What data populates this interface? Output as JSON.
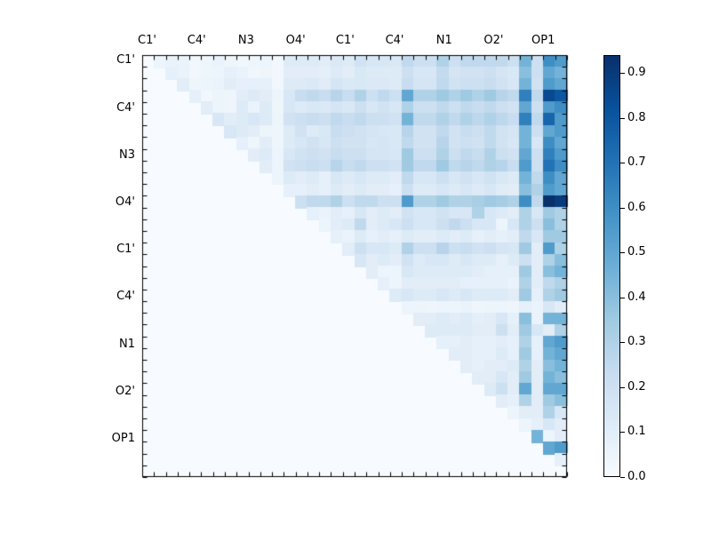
{
  "chart_data": {
    "type": "heatmap",
    "title": "",
    "colormap": "Blues",
    "vmin": 0.0,
    "vmax": 0.94,
    "n": 36,
    "mask": "lower-triangle-and-diagonal",
    "x_tick_labels": [
      "C1'",
      "C4'",
      "N3",
      "O4'",
      "C1'",
      "C4'",
      "N1",
      "O2'",
      "OP1"
    ],
    "y_tick_labels": [
      "C1'",
      "C4'",
      "N3",
      "O4'",
      "C1'",
      "C4'",
      "N1",
      "O2'",
      "OP1"
    ],
    "tick_label_every_n_cells": 4,
    "colorbar_tick_labels": [
      "0.0",
      "0.1",
      "0.2",
      "0.3",
      "0.4",
      "0.5",
      "0.6",
      "0.7",
      "0.8",
      "0.9"
    ],
    "colormap_stops": [
      "#f7fbff",
      "#deebf7",
      "#c6dbef",
      "#9ecae1",
      "#6baed6",
      "#4292c6",
      "#2171b5",
      "#08519c",
      "#08306b"
    ],
    "matrix_upper": [
      [
        0.05,
        0.06,
        0.06,
        0.03,
        0.04,
        0.06,
        0.04,
        0.03,
        0.04,
        0.05,
        0.03,
        0.12,
        0.12,
        0.12,
        0.1,
        0.13,
        0.12,
        0.18,
        0.15,
        0.15,
        0.14,
        0.25,
        0.2,
        0.2,
        0.3,
        0.2,
        0.25,
        0.25,
        0.25,
        0.25,
        0.2,
        0.45,
        0.2,
        0.6,
        0.55
      ],
      [
        0.08,
        0.06,
        0.03,
        0.04,
        0.05,
        0.08,
        0.06,
        0.03,
        0.04,
        0.03,
        0.1,
        0.1,
        0.1,
        0.09,
        0.12,
        0.1,
        0.14,
        0.12,
        0.12,
        0.12,
        0.2,
        0.15,
        0.15,
        0.24,
        0.16,
        0.18,
        0.18,
        0.2,
        0.16,
        0.14,
        0.4,
        0.2,
        0.5,
        0.45
      ],
      [
        0.1,
        0.04,
        0.05,
        0.06,
        0.1,
        0.08,
        0.08,
        0.08,
        0.03,
        0.12,
        0.12,
        0.13,
        0.11,
        0.16,
        0.13,
        0.14,
        0.13,
        0.13,
        0.12,
        0.22,
        0.16,
        0.16,
        0.25,
        0.18,
        0.2,
        0.2,
        0.22,
        0.18,
        0.15,
        0.45,
        0.18,
        0.55,
        0.5
      ],
      [
        0.08,
        0.03,
        0.05,
        0.04,
        0.1,
        0.12,
        0.1,
        0.05,
        0.15,
        0.22,
        0.25,
        0.22,
        0.28,
        0.22,
        0.3,
        0.2,
        0.25,
        0.2,
        0.5,
        0.3,
        0.3,
        0.35,
        0.3,
        0.35,
        0.3,
        0.35,
        0.28,
        0.25,
        0.65,
        0.25,
        0.85,
        0.8
      ],
      [
        0.1,
        0.05,
        0.04,
        0.12,
        0.06,
        0.12,
        0.04,
        0.15,
        0.12,
        0.14,
        0.13,
        0.16,
        0.14,
        0.2,
        0.15,
        0.18,
        0.15,
        0.3,
        0.2,
        0.2,
        0.25,
        0.2,
        0.25,
        0.22,
        0.25,
        0.2,
        0.18,
        0.5,
        0.2,
        0.55,
        0.6
      ],
      [
        0.15,
        0.1,
        0.12,
        0.15,
        0.12,
        0.05,
        0.18,
        0.2,
        0.22,
        0.2,
        0.25,
        0.22,
        0.25,
        0.2,
        0.2,
        0.18,
        0.45,
        0.25,
        0.25,
        0.3,
        0.25,
        0.3,
        0.26,
        0.3,
        0.26,
        0.22,
        0.65,
        0.25,
        0.75,
        0.55
      ],
      [
        0.15,
        0.12,
        0.1,
        0.05,
        0.04,
        0.12,
        0.18,
        0.12,
        0.14,
        0.22,
        0.2,
        0.18,
        0.16,
        0.15,
        0.14,
        0.28,
        0.18,
        0.18,
        0.25,
        0.18,
        0.22,
        0.2,
        0.25,
        0.18,
        0.16,
        0.45,
        0.2,
        0.5,
        0.55
      ],
      [
        0.08,
        0.04,
        0.1,
        0.04,
        0.12,
        0.15,
        0.18,
        0.15,
        0.2,
        0.18,
        0.18,
        0.15,
        0.16,
        0.14,
        0.25,
        0.18,
        0.18,
        0.28,
        0.18,
        0.2,
        0.18,
        0.25,
        0.18,
        0.15,
        0.45,
        0.15,
        0.6,
        0.5
      ],
      [
        0.1,
        0.12,
        0.05,
        0.15,
        0.18,
        0.2,
        0.18,
        0.22,
        0.2,
        0.2,
        0.16,
        0.16,
        0.15,
        0.35,
        0.2,
        0.2,
        0.3,
        0.2,
        0.25,
        0.22,
        0.3,
        0.2,
        0.18,
        0.5,
        0.2,
        0.65,
        0.55
      ],
      [
        0.1,
        0.05,
        0.18,
        0.2,
        0.22,
        0.2,
        0.28,
        0.22,
        0.25,
        0.2,
        0.2,
        0.18,
        0.35,
        0.25,
        0.25,
        0.35,
        0.25,
        0.28,
        0.25,
        0.3,
        0.28,
        0.22,
        0.55,
        0.2,
        0.7,
        0.6
      ],
      [
        0.05,
        0.12,
        0.1,
        0.12,
        0.08,
        0.15,
        0.12,
        0.15,
        0.12,
        0.12,
        0.1,
        0.25,
        0.15,
        0.15,
        0.2,
        0.15,
        0.18,
        0.15,
        0.18,
        0.14,
        0.12,
        0.45,
        0.25,
        0.6,
        0.5
      ],
      [
        0.08,
        0.08,
        0.1,
        0.08,
        0.12,
        0.1,
        0.12,
        0.1,
        0.1,
        0.08,
        0.2,
        0.12,
        0.12,
        0.15,
        0.12,
        0.15,
        0.12,
        0.15,
        0.11,
        0.1,
        0.4,
        0.3,
        0.55,
        0.5
      ],
      [
        0.2,
        0.25,
        0.25,
        0.3,
        0.2,
        0.25,
        0.25,
        0.2,
        0.2,
        0.55,
        0.3,
        0.3,
        0.35,
        0.3,
        0.3,
        0.32,
        0.35,
        0.33,
        0.3,
        0.6,
        0.25,
        0.95,
        0.9
      ],
      [
        0.08,
        0.06,
        0.1,
        0.08,
        0.15,
        0.1,
        0.12,
        0.1,
        0.18,
        0.15,
        0.15,
        0.18,
        0.15,
        0.15,
        0.3,
        0.15,
        0.12,
        0.1,
        0.3,
        0.15,
        0.35,
        0.3
      ],
      [
        0.05,
        0.1,
        0.12,
        0.25,
        0.1,
        0.12,
        0.15,
        0.2,
        0.15,
        0.15,
        0.2,
        0.25,
        0.2,
        0.15,
        0.15,
        0.05,
        0.15,
        0.3,
        0.2,
        0.4,
        0.3
      ],
      [
        0.08,
        0.06,
        0.12,
        0.08,
        0.1,
        0.08,
        0.12,
        0.1,
        0.1,
        0.12,
        0.1,
        0.12,
        0.08,
        0.1,
        0.08,
        0.1,
        0.25,
        0.15,
        0.35,
        0.35
      ],
      [
        0.1,
        0.2,
        0.15,
        0.15,
        0.12,
        0.3,
        0.2,
        0.2,
        0.28,
        0.2,
        0.22,
        0.18,
        0.2,
        0.16,
        0.15,
        0.35,
        0.1,
        0.55,
        0.3
      ],
      [
        0.15,
        0.1,
        0.12,
        0.1,
        0.18,
        0.12,
        0.15,
        0.15,
        0.12,
        0.15,
        0.12,
        0.12,
        0.08,
        0.12,
        0.2,
        0.1,
        0.3,
        0.4
      ],
      [
        0.1,
        0.05,
        0.05,
        0.15,
        0.12,
        0.12,
        0.12,
        0.12,
        0.12,
        0.1,
        0.08,
        0.08,
        0.08,
        0.35,
        0.1,
        0.4,
        0.45
      ],
      [
        0.08,
        0.05,
        0.1,
        0.1,
        0.1,
        0.1,
        0.1,
        0.08,
        0.08,
        0.08,
        0.08,
        0.06,
        0.3,
        0.1,
        0.25,
        0.3
      ],
      [
        0.12,
        0.15,
        0.12,
        0.12,
        0.15,
        0.12,
        0.15,
        0.12,
        0.12,
        0.12,
        0.1,
        0.35,
        0.08,
        0.3,
        0.35
      ],
      [
        0.05,
        0.05,
        0.04,
        0.05,
        0.05,
        0.06,
        0.04,
        0.05,
        0.05,
        0.04,
        0.08,
        0.06,
        0.15,
        0.1
      ],
      [
        0.1,
        0.1,
        0.12,
        0.1,
        0.12,
        0.09,
        0.1,
        0.15,
        0.08,
        0.4,
        0.06,
        0.45,
        0.45
      ],
      [
        0.12,
        0.12,
        0.12,
        0.12,
        0.1,
        0.1,
        0.2,
        0.1,
        0.35,
        0.15,
        0.1,
        0.3
      ],
      [
        0.08,
        0.08,
        0.1,
        0.08,
        0.08,
        0.1,
        0.08,
        0.3,
        0.08,
        0.5,
        0.55
      ],
      [
        0.1,
        0.1,
        0.08,
        0.08,
        0.12,
        0.08,
        0.35,
        0.08,
        0.45,
        0.5
      ],
      [
        0.1,
        0.08,
        0.1,
        0.1,
        0.12,
        0.3,
        0.1,
        0.4,
        0.45
      ],
      [
        0.1,
        0.1,
        0.15,
        0.1,
        0.35,
        0.1,
        0.45,
        0.4
      ],
      [
        0.12,
        0.2,
        0.1,
        0.5,
        0.1,
        0.5,
        0.5
      ],
      [
        0.1,
        0.08,
        0.3,
        0.1,
        0.35,
        0.4
      ],
      [
        0.05,
        0.1,
        0.1,
        0.3,
        0.15
      ],
      [
        0.05,
        0.08,
        0.15,
        0.1
      ],
      [
        0.45,
        0.05,
        0.1
      ],
      [
        0.5,
        0.55
      ],
      [
        0.08
      ],
      []
    ]
  }
}
